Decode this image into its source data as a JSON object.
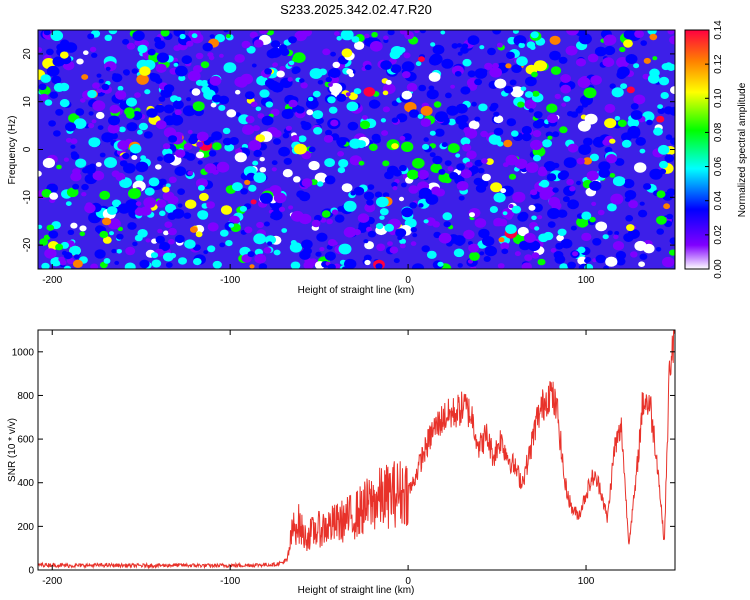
{
  "title": "S233.2025.342.02.47.R20",
  "chart_data": [
    {
      "type": "heatmap",
      "xlabel": "Height of straight line (km)",
      "ylabel": "Frequency (Hz)",
      "xlim": [
        -208,
        150
      ],
      "ylim": [
        -25,
        25
      ],
      "xticks": [
        -200,
        -100,
        0,
        100
      ],
      "yticks": [
        -20,
        -10,
        0,
        10,
        20
      ],
      "xtick_labels": [
        "-200",
        "-100",
        "0",
        "100"
      ],
      "ytick_labels": [
        "-20",
        "-10",
        "0",
        "10",
        "20"
      ],
      "colorbar": {
        "label": "Normalized spectral amplitude",
        "range": [
          0,
          0.14
        ],
        "ticks": [
          0,
          0.02,
          0.04,
          0.06,
          0.08,
          0.1,
          0.12,
          0.14
        ],
        "tick_labels": [
          "0.00",
          "0.02",
          "0.04",
          "0.06",
          "0.08",
          "0.10",
          "0.12",
          "0.14"
        ],
        "colormap": [
          "#ffffff",
          "#8000ff",
          "#0000ff",
          "#00ffff",
          "#00ff00",
          "#ffff00",
          "#ff8000",
          "#ff0040"
        ]
      },
      "note": "random speckle field, values mostly 0.02-0.06 with sparse peaks up to 0.14"
    },
    {
      "type": "line",
      "xlabel": "Height of straight line (km)",
      "ylabel": "SNR (10 * v/v)",
      "xlim": [
        -208,
        150
      ],
      "ylim": [
        0,
        1100
      ],
      "xticks": [
        -200,
        -100,
        0,
        100
      ],
      "yticks": [
        0,
        200,
        400,
        600,
        800,
        1000
      ],
      "xtick_labels": [
        "-200",
        "-100",
        "0",
        "100"
      ],
      "ytick_labels": [
        "0",
        "200",
        "400",
        "600",
        "800",
        "1000"
      ],
      "series": [
        {
          "name": "SNR",
          "color": "#e8322a",
          "x": [
            -208,
            -190,
            -170,
            -150,
            -130,
            -110,
            -90,
            -75,
            -68,
            -65,
            -62,
            -58,
            -52,
            -45,
            -38,
            -30,
            -22,
            -15,
            -8,
            -2,
            2,
            8,
            14,
            20,
            26,
            32,
            36,
            40,
            44,
            48,
            52,
            56,
            60,
            64,
            68,
            72,
            76,
            80,
            84,
            88,
            92,
            96,
            100,
            104,
            108,
            112,
            116,
            120,
            124,
            128,
            132,
            136,
            140,
            144,
            147,
            150
          ],
          "values": [
            25,
            20,
            22,
            20,
            22,
            20,
            22,
            25,
            40,
            180,
            220,
            150,
            180,
            200,
            220,
            250,
            300,
            330,
            350,
            360,
            380,
            520,
            640,
            700,
            720,
            750,
            700,
            560,
            620,
            520,
            600,
            520,
            470,
            400,
            520,
            680,
            760,
            820,
            720,
            400,
            280,
            250,
            350,
            430,
            380,
            230,
            560,
            650,
            120,
            400,
            780,
            760,
            500,
            120,
            950,
            1060
          ]
        }
      ]
    }
  ]
}
